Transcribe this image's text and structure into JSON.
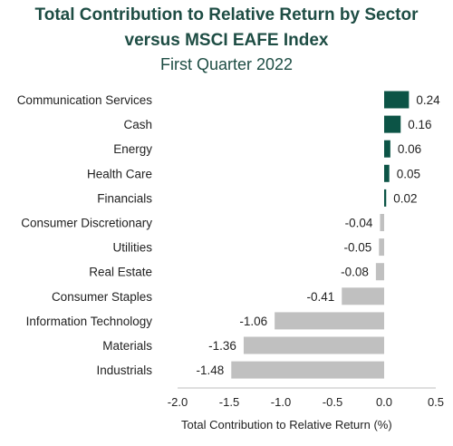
{
  "title_line1": "Total Contribution to Relative Return by Sector",
  "title_line2": "versus MSCI EAFE Index",
  "subtitle": "First Quarter 2022",
  "colors": {
    "positive": "#0c5446",
    "negative": "#c0c0c0",
    "title": "#1e4d44"
  },
  "chart_data": {
    "type": "bar",
    "orientation": "horizontal",
    "categories": [
      "Communication Services",
      "Cash",
      "Energy",
      "Health Care",
      "Financials",
      "Consumer Discretionary",
      "Utilities",
      "Real Estate",
      "Consumer Staples",
      "Information Technology",
      "Materials",
      "Industrials"
    ],
    "values": [
      0.24,
      0.16,
      0.06,
      0.05,
      0.02,
      -0.04,
      -0.05,
      -0.08,
      -0.41,
      -1.06,
      -1.36,
      -1.48
    ],
    "value_labels": [
      "0.24",
      "0.16",
      "0.06",
      "0.05",
      "0.02",
      "-0.04",
      "-0.05",
      "-0.08",
      "-0.41",
      "-1.06",
      "-1.36",
      "-1.48"
    ],
    "xlim": [
      -2.0,
      0.5
    ],
    "xticks": [
      "-2.0",
      "-1.5",
      "-1.0",
      "-0.5",
      "0.0",
      "0.5"
    ],
    "xlabel": "Total Contribution to Relative Return (%)",
    "grid": false,
    "legend": "none"
  }
}
